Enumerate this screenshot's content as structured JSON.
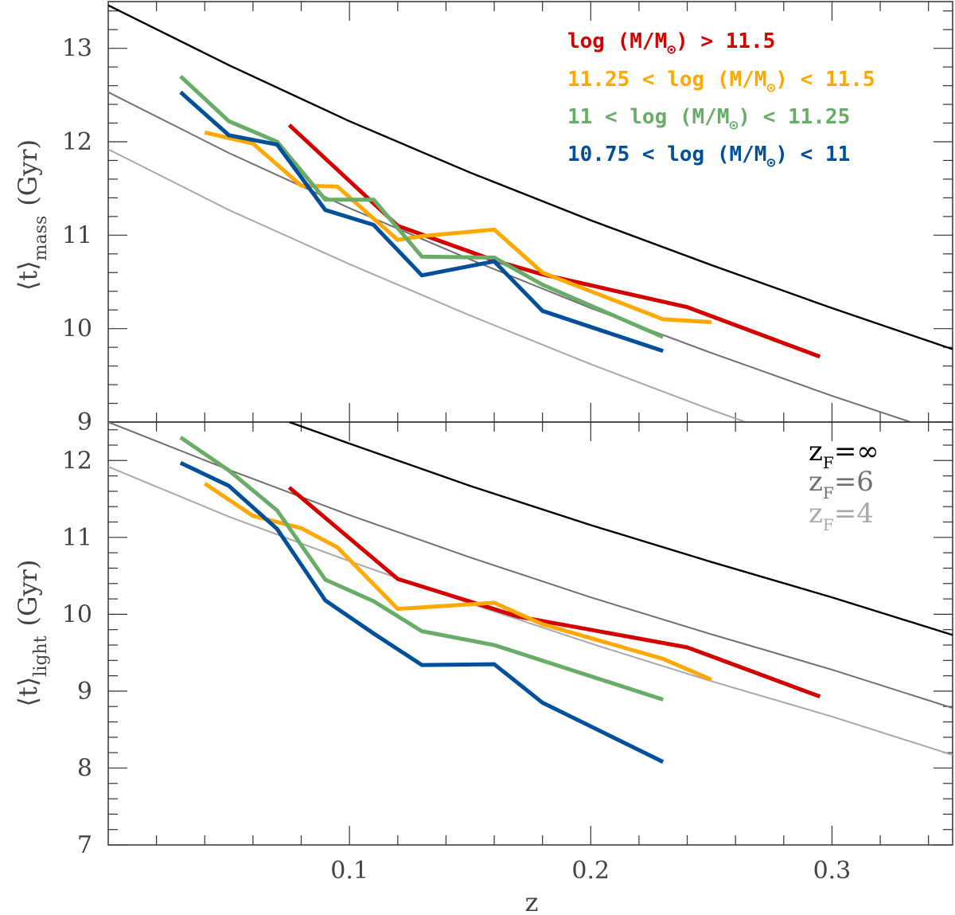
{
  "chart_data": [
    {
      "type": "line",
      "panel": "top",
      "ylabel_main": "⟨t⟩",
      "ylabel_sub": "mass",
      "ylabel_unit": "(Gyr)",
      "xlim": [
        0,
        0.35
      ],
      "ylim": [
        9,
        13.5
      ],
      "yticks": [
        9,
        10,
        11,
        12,
        13
      ],
      "ytick_labels": [
        "9",
        "10",
        "11",
        "12",
        "13"
      ],
      "legend_position": "top-right",
      "series": [
        {
          "name": "log (M/M⊙) > 11.5",
          "legend_main": "log (M/M",
          "legend_tail": ") > 11.5",
          "color": "#d40000",
          "x": [
            0.075,
            0.12,
            0.16,
            0.18,
            0.24,
            0.295
          ],
          "y": [
            12.18,
            11.1,
            10.73,
            10.58,
            10.23,
            9.7
          ]
        },
        {
          "name": "11.25 < log (M/M⊙) < 11.5",
          "legend_main": "11.25 < log (M/M",
          "legend_tail": ") < 11.5",
          "color": "#ffa800",
          "x": [
            0.04,
            0.06,
            0.08,
            0.095,
            0.12,
            0.13,
            0.16,
            0.18,
            0.23,
            0.25
          ],
          "y": [
            12.1,
            11.98,
            11.53,
            11.52,
            10.95,
            10.99,
            11.06,
            10.6,
            10.1,
            10.07
          ]
        },
        {
          "name": "11 < log (M/M⊙) < 11.25",
          "legend_main": "11 < log (M/M",
          "legend_tail": ") < 11.25",
          "color": "#69ac68",
          "x": [
            0.03,
            0.05,
            0.07,
            0.09,
            0.11,
            0.13,
            0.16,
            0.18,
            0.23
          ],
          "y": [
            12.7,
            12.22,
            12.0,
            11.38,
            11.38,
            10.77,
            10.76,
            10.47,
            9.91
          ]
        },
        {
          "name": "10.75 < log (M/M⊙) < 11",
          "legend_main": "10.75 < log (M/M",
          "legend_tail": ") < 11",
          "color": "#004f9b",
          "x": [
            0.03,
            0.05,
            0.07,
            0.09,
            0.11,
            0.13,
            0.16,
            0.18,
            0.23
          ],
          "y": [
            12.53,
            12.07,
            11.97,
            11.27,
            11.11,
            10.57,
            10.72,
            10.19,
            9.76
          ]
        }
      ],
      "model_curves": [
        {
          "label": "z_F=∞",
          "color": "#000000",
          "x": [
            0,
            0.05,
            0.1,
            0.15,
            0.2,
            0.25,
            0.3,
            0.35
          ],
          "y": [
            13.46,
            12.82,
            12.22,
            11.67,
            11.16,
            10.68,
            10.22,
            9.78
          ]
        },
        {
          "label": "z_F=6",
          "color": "#707070",
          "x": [
            0,
            0.05,
            0.1,
            0.15,
            0.2,
            0.25,
            0.3,
            0.35
          ],
          "y": [
            12.53,
            11.88,
            11.29,
            10.74,
            10.22,
            9.74,
            9.28,
            8.85
          ]
        },
        {
          "label": "z_F=4",
          "color": "#a8a8a8",
          "x": [
            0,
            0.05,
            0.1,
            0.15,
            0.2,
            0.25,
            0.3,
            0.35
          ],
          "y": [
            11.92,
            11.27,
            10.69,
            10.14,
            9.62,
            9.13,
            8.67,
            8.24
          ]
        }
      ]
    },
    {
      "type": "line",
      "panel": "bottom",
      "ylabel_main": "⟨t⟩",
      "ylabel_sub": "light",
      "ylabel_unit": "(Gyr)",
      "xlabel": "z",
      "xlim": [
        0,
        0.35
      ],
      "ylim": [
        7,
        12.5
      ],
      "yticks": [
        7,
        8,
        9,
        10,
        11,
        12
      ],
      "ytick_labels": [
        "7",
        "8",
        "9",
        "10",
        "11",
        "12"
      ],
      "xticks": [
        0.1,
        0.2,
        0.3
      ],
      "xtick_labels": [
        "0.1",
        "0.2",
        "0.3"
      ],
      "legend_position": "top-right",
      "series": [
        {
          "name": "log (M/M⊙) > 11.5",
          "color": "#d40000",
          "x": [
            0.075,
            0.12,
            0.17,
            0.24,
            0.295
          ],
          "y": [
            11.65,
            10.46,
            9.97,
            9.57,
            8.93
          ]
        },
        {
          "name": "11.25 < log (M/M⊙) < 11.5",
          "color": "#ffa800",
          "x": [
            0.04,
            0.06,
            0.08,
            0.095,
            0.12,
            0.16,
            0.18,
            0.23,
            0.25
          ],
          "y": [
            11.7,
            11.28,
            11.12,
            10.87,
            10.07,
            10.15,
            9.87,
            9.42,
            9.15
          ]
        },
        {
          "name": "11 < log (M/M⊙) < 11.25",
          "color": "#69ac68",
          "x": [
            0.03,
            0.05,
            0.07,
            0.09,
            0.11,
            0.13,
            0.16,
            0.23
          ],
          "y": [
            12.3,
            11.87,
            11.35,
            10.45,
            10.17,
            9.78,
            9.6,
            8.89
          ]
        },
        {
          "name": "10.75 < log (M/M⊙) < 11",
          "color": "#004f9b",
          "x": [
            0.03,
            0.05,
            0.07,
            0.09,
            0.11,
            0.13,
            0.16,
            0.18,
            0.23
          ],
          "y": [
            11.97,
            11.67,
            11.11,
            10.18,
            9.75,
            9.34,
            9.35,
            8.85,
            8.08
          ]
        }
      ],
      "model_curves": [
        {
          "label": "z_F=∞",
          "label_main": "z",
          "label_sub": "F",
          "label_tail": "=∞",
          "color": "#000000",
          "x": [
            0.075,
            0.1,
            0.15,
            0.2,
            0.25,
            0.3,
            0.35
          ],
          "y": [
            12.5,
            12.22,
            11.67,
            11.16,
            10.68,
            10.22,
            9.73
          ]
        },
        {
          "label": "z_F=6",
          "label_main": "z",
          "label_sub": "F",
          "label_tail": "=6",
          "color": "#707070",
          "x": [
            0,
            0.05,
            0.1,
            0.15,
            0.2,
            0.25,
            0.3,
            0.35
          ],
          "y": [
            12.5,
            11.88,
            11.29,
            10.74,
            10.22,
            9.74,
            9.28,
            8.78
          ]
        },
        {
          "label": "z_F=4",
          "label_main": "z",
          "label_sub": "F",
          "label_tail": "=4",
          "color": "#a8a8a8",
          "x": [
            0,
            0.05,
            0.1,
            0.15,
            0.2,
            0.25,
            0.3,
            0.35
          ],
          "y": [
            11.92,
            11.27,
            10.69,
            10.14,
            9.62,
            9.13,
            8.67,
            8.17
          ]
        }
      ]
    }
  ]
}
